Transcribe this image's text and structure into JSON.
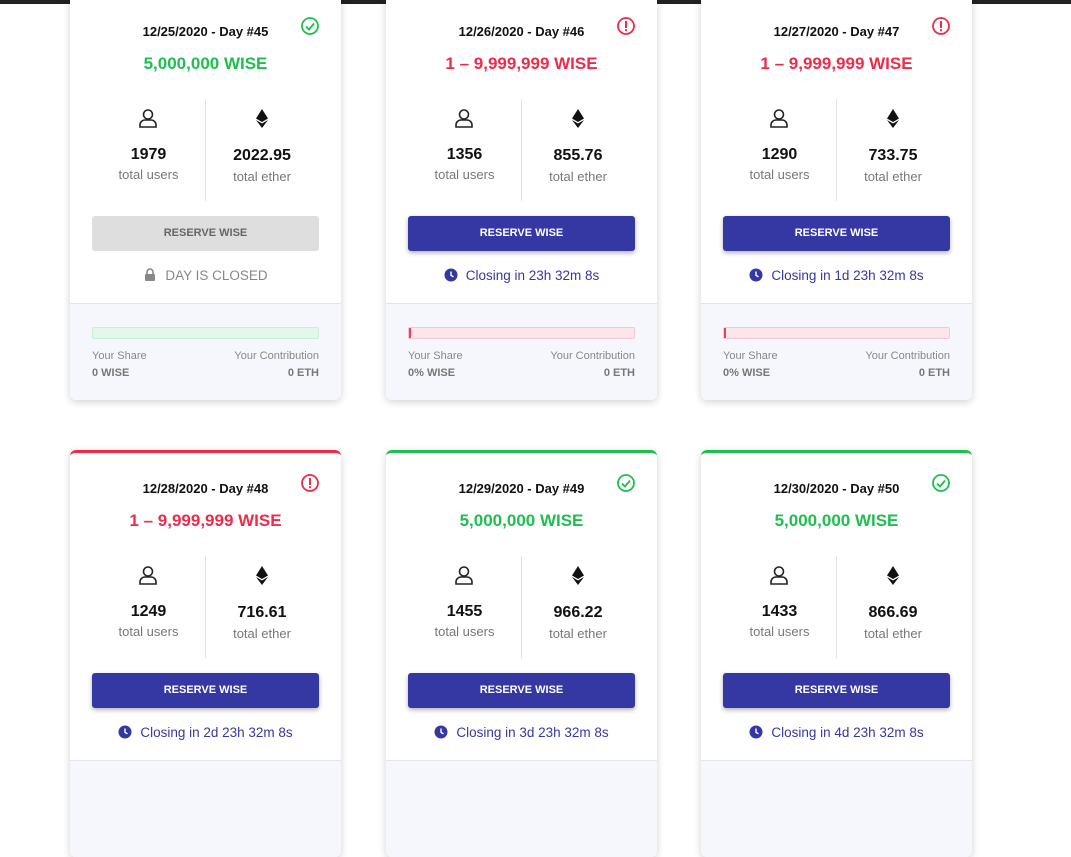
{
  "cards": [
    {
      "date": "12/25/2020 - Day #45",
      "amount": "5,000,000 WISE",
      "accent": "#1fbf4f",
      "users": "1979",
      "users_label": "total users",
      "ether": "2022.95",
      "ether_label": "total ether",
      "button": "RESERVE WISE",
      "button_disabled": true,
      "status": "DAY IS CLOSED",
      "bar_color": "#1fbf4f",
      "share_label": "Your Share",
      "share": "0 WISE",
      "contribution_label": "Your Contribution",
      "contribution": "0 ETH"
    },
    {
      "date": "12/26/2020 - Day #46",
      "amount": "1 – 9,999,999 WISE",
      "accent": "#ef2b4b",
      "users": "1356",
      "users_label": "total users",
      "ether": "855.76",
      "ether_label": "total ether",
      "button": "RESERVE WISE",
      "button_disabled": false,
      "status": "Closing in 23h 32m 8s",
      "bar_color": "#ef2b4b",
      "share_label": "Your Share",
      "share": "0% WISE",
      "contribution_label": "Your Contribution",
      "contribution": "0 ETH"
    },
    {
      "date": "12/27/2020 - Day #47",
      "amount": "1 – 9,999,999 WISE",
      "accent": "#ef2b4b",
      "users": "1290",
      "users_label": "total users",
      "ether": "733.75",
      "ether_label": "total ether",
      "button": "RESERVE WISE",
      "button_disabled": false,
      "status": "Closing in 1d 23h 32m 8s",
      "bar_color": "#ef2b4b",
      "share_label": "Your Share",
      "share": "0% WISE",
      "contribution_label": "Your Contribution",
      "contribution": "0 ETH"
    },
    {
      "date": "12/28/2020 - Day #48",
      "amount": "1 – 9,999,999 WISE",
      "accent": "#ef2b4b",
      "users": "1249",
      "users_label": "total users",
      "ether": "716.61",
      "ether_label": "total ether",
      "button": "RESERVE WISE",
      "button_disabled": false,
      "status": "Closing in 2d 23h 32m 8s"
    },
    {
      "date": "12/29/2020 - Day #49",
      "amount": "5,000,000 WISE",
      "accent": "#1fbf4f",
      "users": "1455",
      "users_label": "total users",
      "ether": "966.22",
      "ether_label": "total ether",
      "button": "RESERVE WISE",
      "button_disabled": false,
      "status": "Closing in 3d 23h 32m 8s"
    },
    {
      "date": "12/30/2020 - Day #50",
      "amount": "5,000,000 WISE",
      "accent": "#1fbf4f",
      "users": "1433",
      "users_label": "total users",
      "ether": "866.69",
      "ether_label": "total ether",
      "button": "RESERVE WISE",
      "button_disabled": false,
      "status": "Closing in 4d 23h 32m 8s"
    }
  ]
}
